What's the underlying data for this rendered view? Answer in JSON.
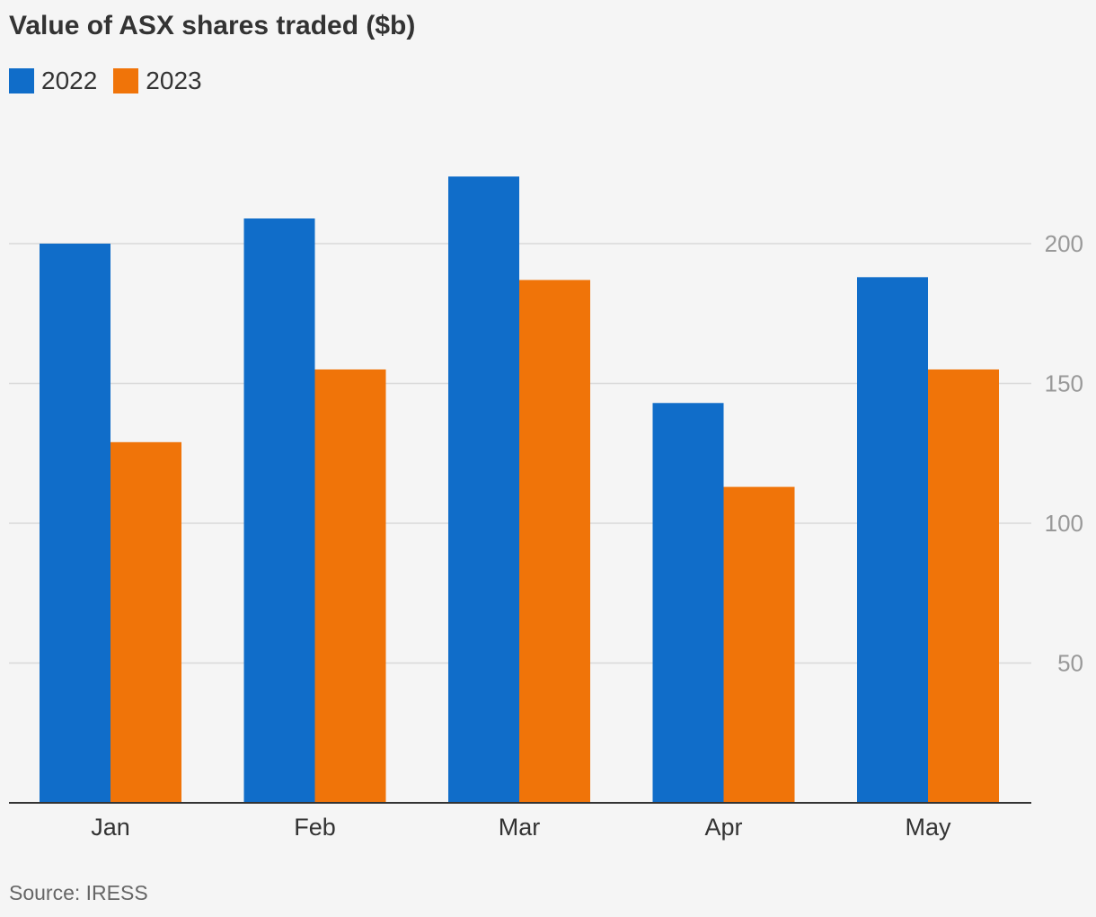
{
  "chart_data": {
    "type": "bar",
    "title": "Value of ASX shares traded ($b)",
    "categories": [
      "Jan",
      "Feb",
      "Mar",
      "Apr",
      "May"
    ],
    "series": [
      {
        "name": "2022",
        "color": "#106dc9",
        "values": [
          200,
          209,
          224,
          143,
          188
        ]
      },
      {
        "name": "2023",
        "color": "#f07409",
        "values": [
          129,
          155,
          187,
          113,
          155
        ]
      }
    ],
    "y_ticks": [
      "50",
      "100",
      "150",
      "200"
    ],
    "ylim": [
      0,
      250
    ],
    "y_axis_side": "right",
    "grid": true,
    "legend_position": "top-left",
    "source": "Source: IRESS"
  }
}
